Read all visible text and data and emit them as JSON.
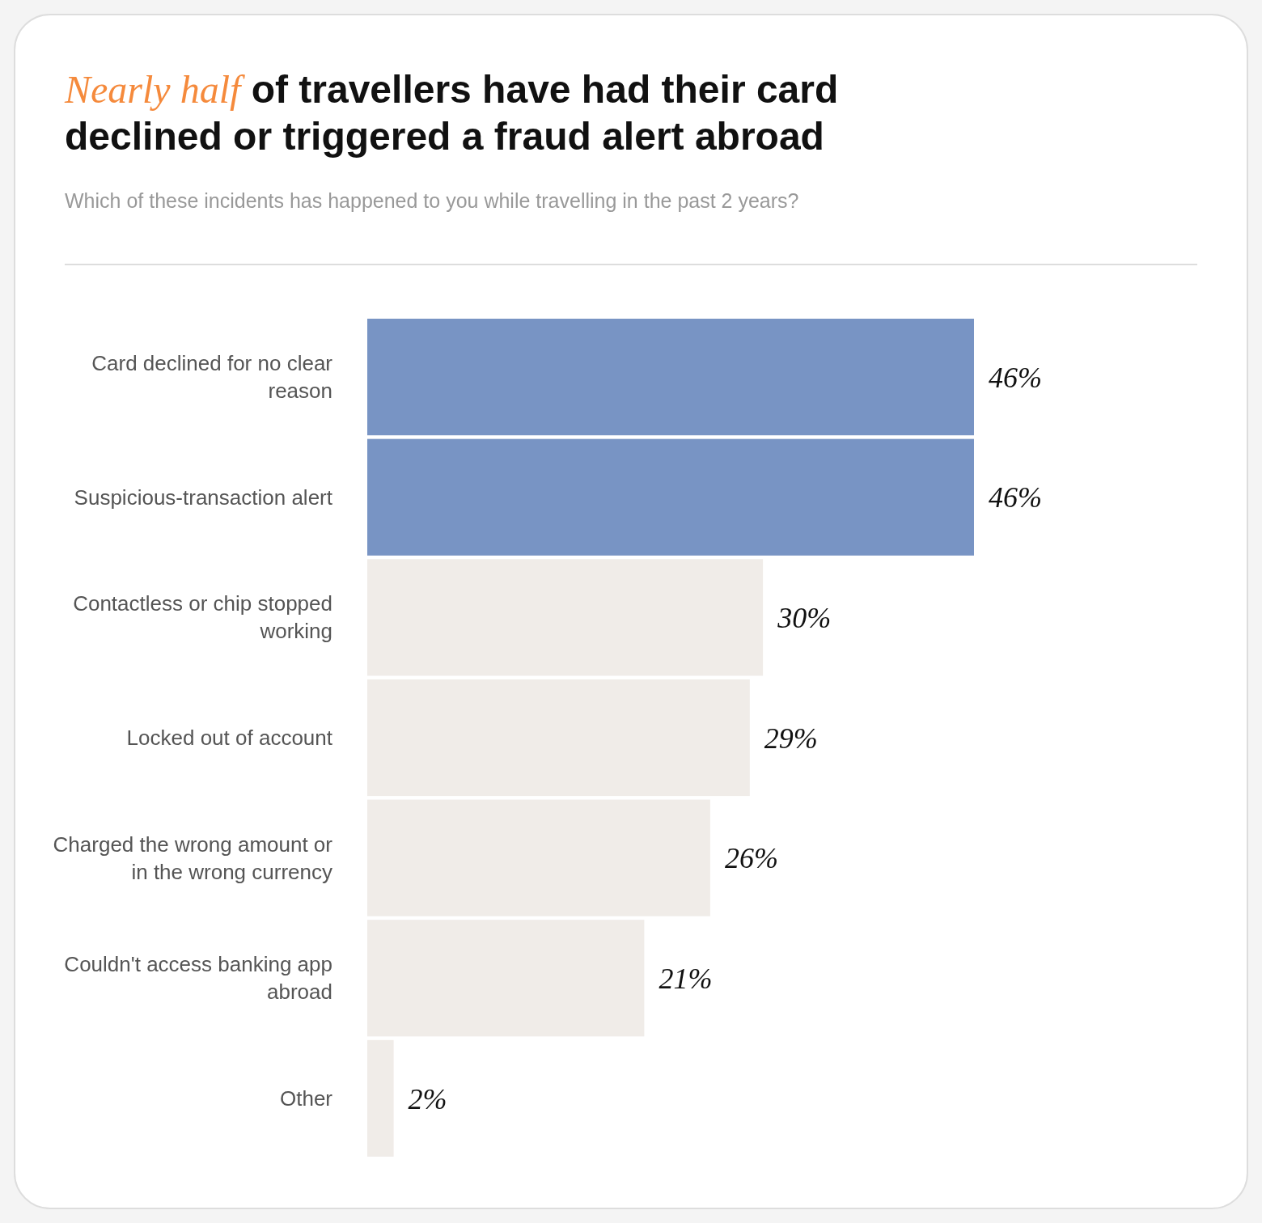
{
  "chart_data": {
    "type": "bar",
    "orientation": "horizontal",
    "title": "Nearly half of travellers have had their card declined or triggered a fraud alert abroad",
    "subtitle": "Which of these incidents has happened to you while travelling in the past 2 years?",
    "categories": [
      "Card declined for no clear reason",
      "Suspicious-transaction alert",
      "Contactless or chip stopped working",
      "Locked out of account",
      "Charged the wrong amount or in the wrong currency",
      "Couldn't access banking app abroad",
      "Other"
    ],
    "values": [
      46,
      46,
      30,
      29,
      26,
      21,
      2
    ],
    "colors": [
      "#7894c4",
      "#7894c4",
      "#f0ece8",
      "#f0ece8",
      "#f0ece8",
      "#f0ece8",
      "#f0ece8"
    ],
    "value_labels": [
      "46%",
      "46%",
      "30%",
      "29%",
      "26%",
      "21%",
      "2%"
    ]
  }
}
